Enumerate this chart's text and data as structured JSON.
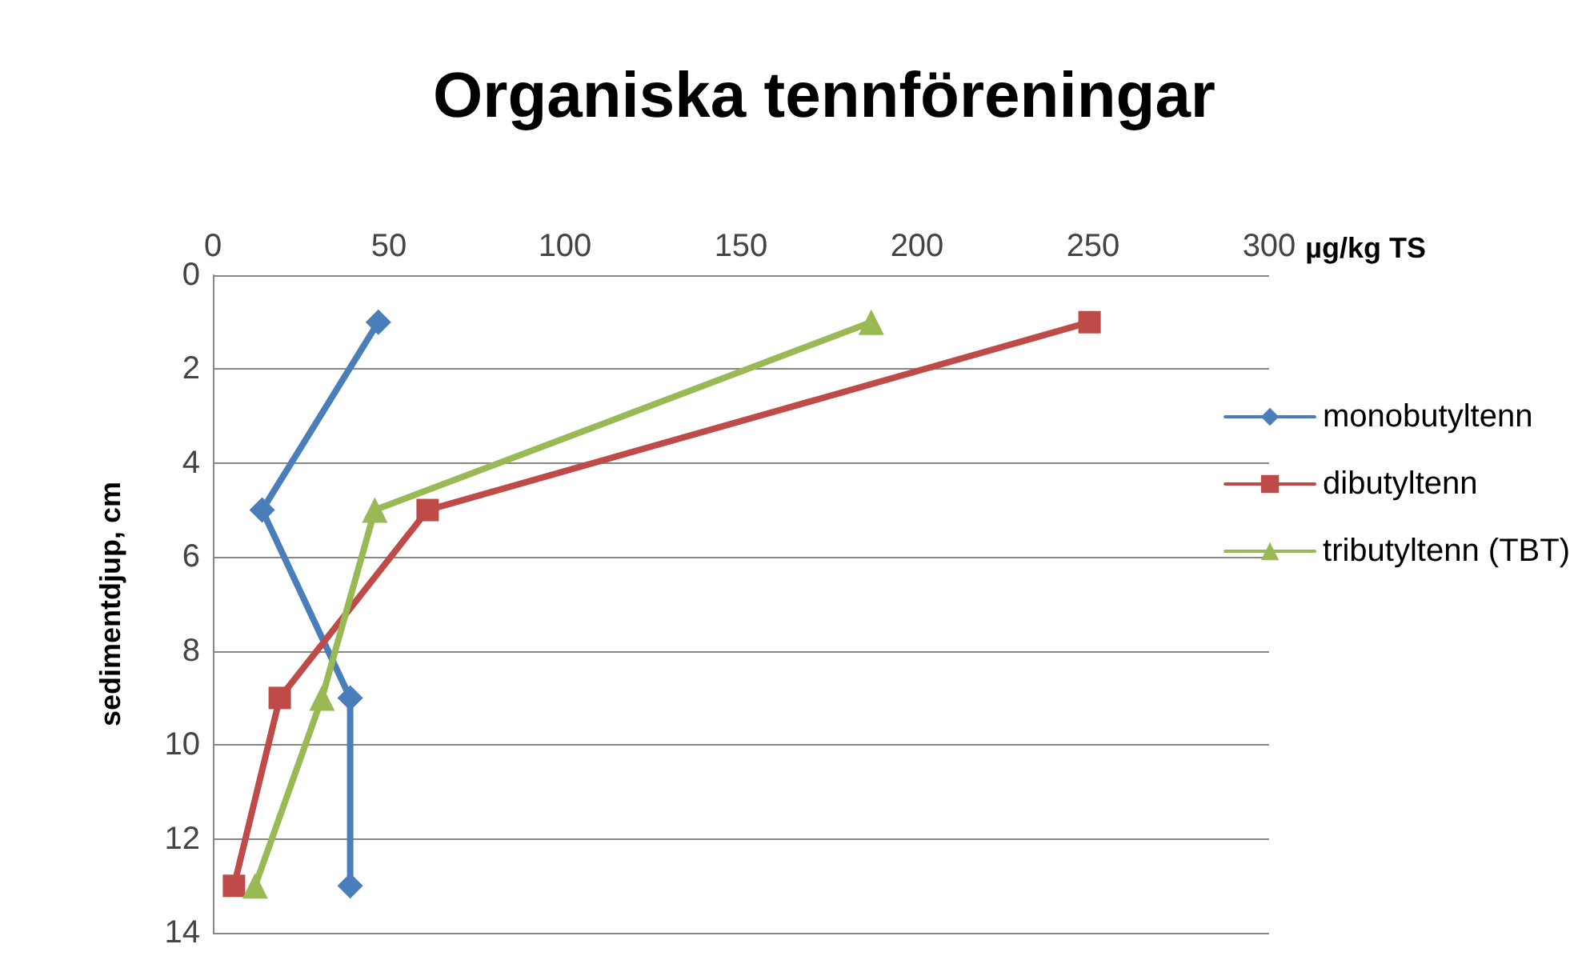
{
  "chart_data": {
    "type": "line",
    "title": "Organiska tennföreningar",
    "xlabel": "µg/kg TS",
    "ylabel": "sedimentdjup, cm",
    "xlim": [
      0,
      300
    ],
    "xticks": [
      0,
      50,
      100,
      150,
      200,
      250,
      300
    ],
    "ylim": [
      14,
      0
    ],
    "yticks": [
      0,
      2,
      4,
      6,
      8,
      10,
      12,
      14
    ],
    "grid": "y",
    "legend": "right",
    "line_style": "solid",
    "series": [
      {
        "name": "monobutyltenn",
        "color": "#4a7ebb",
        "marker": "diamond",
        "x": [
          47,
          14,
          39,
          39
        ],
        "values": [
          1,
          5,
          9,
          13
        ]
      },
      {
        "name": "dibutyltenn",
        "color": "#be4b48",
        "marker": "square",
        "x": [
          249,
          61,
          19,
          6
        ],
        "values": [
          1,
          5,
          9,
          13
        ]
      },
      {
        "name": "tributyltenn (TBT)",
        "color": "#98b954",
        "marker": "triangle",
        "x": [
          187,
          46,
          31,
          12
        ],
        "values": [
          1,
          5,
          9,
          13
        ]
      }
    ]
  }
}
